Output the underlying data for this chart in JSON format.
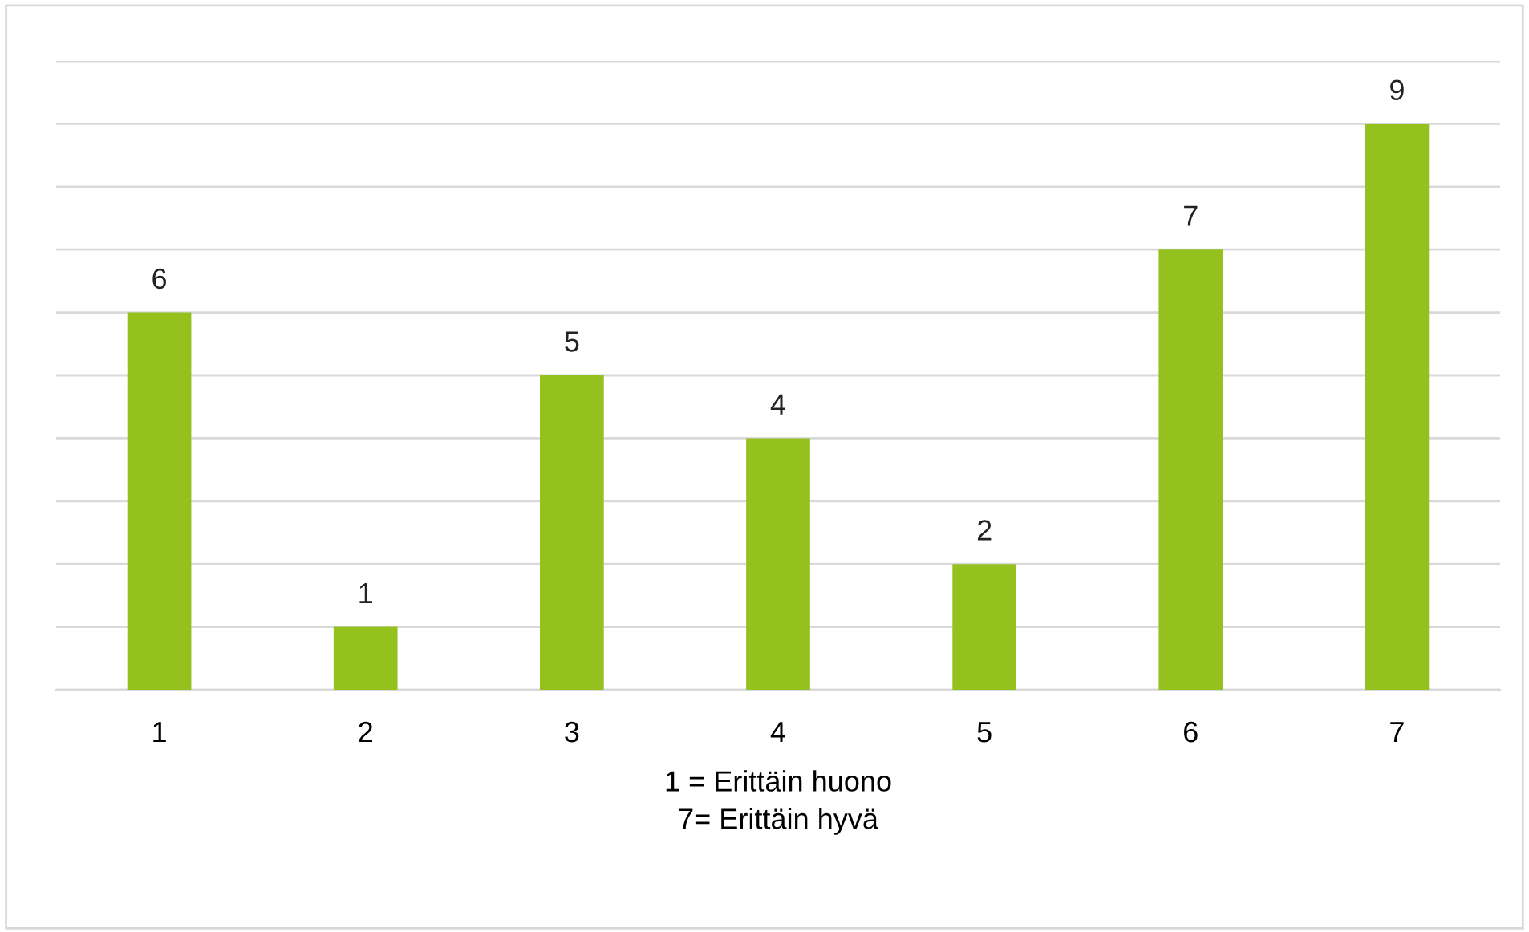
{
  "chart_data": {
    "type": "bar",
    "xlabel": "1 = Erittäin huono\n7= Erittäin hyvä",
    "categories": [
      "1",
      "2",
      "3",
      "4",
      "5",
      "6",
      "7"
    ],
    "values": [
      6,
      1,
      5,
      4,
      2,
      7,
      9
    ],
    "color": "#95c11f",
    "ylim": [
      0,
      10
    ],
    "yticks": [
      {
        "value": 0,
        "label": null
      },
      {
        "value": 1,
        "label": null
      },
      {
        "value": 2,
        "label": null
      },
      {
        "value": 3,
        "label": null
      },
      {
        "value": 4,
        "label": null
      },
      {
        "value": 5,
        "label": null
      },
      {
        "value": 6,
        "label": null
      },
      {
        "value": 7,
        "label": null
      },
      {
        "value": 8,
        "label": null
      },
      {
        "value": 9,
        "label": null
      },
      {
        "value": 10,
        "label": null
      }
    ],
    "tick_labels": "x",
    "grid": "y",
    "data_labels": true
  }
}
